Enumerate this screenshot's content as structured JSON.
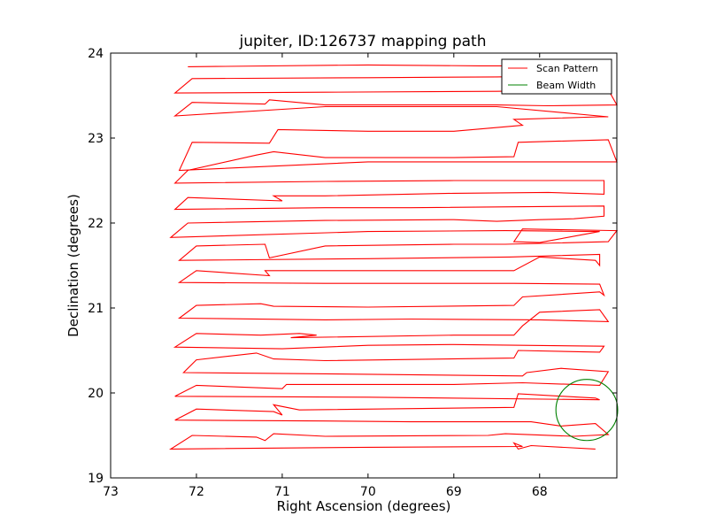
{
  "chart_data": {
    "type": "line",
    "title": "jupiter, ID:126737 mapping path",
    "xlabel": "Right Ascension (degrees)",
    "ylabel": "Declination (degrees)",
    "xlim": [
      73.0,
      67.1
    ],
    "ylim": [
      19.0,
      24.0
    ],
    "x_axis_inverted": true,
    "xticks": [
      73,
      72,
      71,
      70,
      69,
      68
    ],
    "yticks": [
      19,
      20,
      21,
      22,
      23,
      24
    ],
    "x_tick_labels": [
      "73",
      "72",
      "71",
      "70",
      "69",
      "68"
    ],
    "y_tick_labels": [
      "19",
      "20",
      "21",
      "22",
      "23",
      "24"
    ],
    "grid": false,
    "legend_position": "top-right",
    "series": [
      {
        "name": "Scan Pattern",
        "color": "#ff0000",
        "style": "line",
        "points": [
          [
            67.35,
            19.34
          ],
          [
            68.1,
            19.38
          ],
          [
            68.25,
            19.34
          ],
          [
            68.3,
            19.41
          ],
          [
            68.2,
            19.37
          ],
          [
            70.0,
            19.36
          ],
          [
            72.3,
            19.34
          ],
          [
            72.05,
            19.5
          ],
          [
            71.3,
            19.48
          ],
          [
            71.2,
            19.44
          ],
          [
            71.1,
            19.52
          ],
          [
            70.5,
            19.49
          ],
          [
            68.6,
            19.5
          ],
          [
            68.4,
            19.52
          ],
          [
            67.6,
            19.49
          ],
          [
            67.2,
            19.51
          ],
          [
            67.35,
            19.64
          ],
          [
            67.75,
            19.61
          ],
          [
            68.1,
            19.66
          ],
          [
            69.5,
            19.66
          ],
          [
            70.5,
            19.67
          ],
          [
            72.25,
            19.68
          ],
          [
            72.0,
            19.81
          ],
          [
            71.1,
            19.78
          ],
          [
            71.0,
            19.74
          ],
          [
            71.1,
            19.86
          ],
          [
            70.8,
            19.8
          ],
          [
            68.3,
            19.83
          ],
          [
            68.25,
            19.99
          ],
          [
            67.35,
            19.94
          ],
          [
            67.3,
            19.92
          ],
          [
            70.0,
            19.95
          ],
          [
            72.25,
            19.96
          ],
          [
            72.0,
            20.09
          ],
          [
            71.0,
            20.05
          ],
          [
            70.95,
            20.1
          ],
          [
            69.0,
            20.1
          ],
          [
            68.2,
            20.12
          ],
          [
            67.3,
            20.09
          ],
          [
            67.2,
            20.25
          ],
          [
            67.75,
            20.29
          ],
          [
            68.15,
            20.24
          ],
          [
            68.2,
            20.2
          ],
          [
            70.0,
            20.22
          ],
          [
            72.15,
            20.24
          ],
          [
            72.0,
            20.39
          ],
          [
            71.3,
            20.47
          ],
          [
            71.1,
            20.4
          ],
          [
            70.5,
            20.38
          ],
          [
            68.3,
            20.41
          ],
          [
            68.25,
            20.5
          ],
          [
            67.3,
            20.48
          ],
          [
            67.25,
            20.55
          ],
          [
            69.0,
            20.57
          ],
          [
            70.0,
            20.56
          ],
          [
            71.0,
            20.52
          ],
          [
            72.25,
            20.54
          ],
          [
            72.0,
            20.7
          ],
          [
            71.25,
            20.68
          ],
          [
            70.8,
            20.7
          ],
          [
            70.6,
            20.68
          ],
          [
            70.9,
            20.65
          ],
          [
            69.0,
            20.68
          ],
          [
            68.3,
            20.68
          ],
          [
            68.2,
            20.79
          ],
          [
            68.0,
            20.95
          ],
          [
            67.3,
            20.98
          ],
          [
            67.2,
            20.84
          ],
          [
            68.0,
            20.86
          ],
          [
            69.5,
            20.87
          ],
          [
            70.5,
            20.86
          ],
          [
            72.2,
            20.88
          ],
          [
            72.0,
            21.03
          ],
          [
            71.25,
            21.05
          ],
          [
            71.1,
            21.02
          ],
          [
            70.0,
            21.01
          ],
          [
            68.3,
            21.03
          ],
          [
            68.2,
            21.13
          ],
          [
            67.3,
            21.19
          ],
          [
            67.25,
            21.15
          ],
          [
            67.3,
            21.28
          ],
          [
            68.3,
            21.29
          ],
          [
            70.5,
            21.29
          ],
          [
            72.2,
            21.3
          ],
          [
            72.0,
            21.44
          ],
          [
            71.15,
            21.38
          ],
          [
            71.2,
            21.44
          ],
          [
            70.5,
            21.44
          ],
          [
            68.3,
            21.44
          ],
          [
            68.0,
            21.6
          ],
          [
            67.35,
            21.56
          ],
          [
            67.3,
            21.5
          ],
          [
            67.3,
            21.63
          ],
          [
            68.35,
            21.6
          ],
          [
            70.0,
            21.58
          ],
          [
            72.2,
            21.56
          ],
          [
            72.0,
            21.73
          ],
          [
            71.2,
            21.75
          ],
          [
            71.15,
            21.59
          ],
          [
            70.5,
            21.73
          ],
          [
            69.0,
            21.75
          ],
          [
            68.4,
            21.75
          ],
          [
            67.2,
            21.78
          ],
          [
            67.1,
            21.91
          ],
          [
            68.2,
            21.93
          ],
          [
            68.3,
            21.78
          ],
          [
            68.0,
            21.77
          ],
          [
            67.3,
            21.9
          ],
          [
            68.4,
            21.91
          ],
          [
            70.0,
            21.9
          ],
          [
            72.3,
            21.83
          ],
          [
            72.1,
            22.0
          ],
          [
            70.5,
            22.03
          ],
          [
            69.0,
            22.04
          ],
          [
            68.5,
            22.02
          ],
          [
            68.0,
            22.04
          ],
          [
            67.6,
            22.05
          ],
          [
            67.25,
            22.08
          ],
          [
            67.25,
            22.2
          ],
          [
            69.5,
            22.18
          ],
          [
            70.5,
            22.18
          ],
          [
            72.25,
            22.16
          ],
          [
            72.1,
            22.3
          ],
          [
            71.0,
            22.26
          ],
          [
            71.1,
            22.32
          ],
          [
            70.5,
            22.32
          ],
          [
            69.0,
            22.35
          ],
          [
            67.9,
            22.36
          ],
          [
            67.25,
            22.34
          ],
          [
            67.25,
            22.5
          ],
          [
            69.0,
            22.5
          ],
          [
            70.5,
            22.49
          ],
          [
            72.25,
            22.47
          ],
          [
            72.1,
            22.62
          ],
          [
            71.3,
            22.8
          ],
          [
            71.1,
            22.84
          ],
          [
            70.5,
            22.77
          ],
          [
            69.0,
            22.77
          ],
          [
            68.3,
            22.78
          ],
          [
            68.25,
            22.95
          ],
          [
            67.2,
            22.98
          ],
          [
            67.1,
            22.72
          ],
          [
            68.3,
            22.72
          ],
          [
            70.0,
            22.72
          ],
          [
            72.2,
            22.62
          ],
          [
            72.05,
            22.95
          ],
          [
            71.15,
            22.94
          ],
          [
            71.05,
            23.1
          ],
          [
            70.0,
            23.08
          ],
          [
            69.0,
            23.08
          ],
          [
            68.2,
            23.15
          ],
          [
            68.3,
            23.22
          ],
          [
            67.3,
            23.25
          ],
          [
            67.2,
            23.25
          ],
          [
            68.5,
            23.37
          ],
          [
            70.5,
            23.37
          ],
          [
            72.25,
            23.26
          ],
          [
            72.05,
            23.42
          ],
          [
            71.2,
            23.4
          ],
          [
            71.15,
            23.45
          ],
          [
            70.5,
            23.39
          ],
          [
            68.5,
            23.39
          ],
          [
            67.9,
            23.38
          ],
          [
            67.1,
            23.39
          ],
          [
            67.2,
            23.57
          ],
          [
            68.5,
            23.55
          ],
          [
            70.5,
            23.54
          ],
          [
            72.25,
            23.53
          ],
          [
            72.05,
            23.7
          ],
          [
            70.0,
            23.71
          ],
          [
            68.5,
            23.72
          ],
          [
            67.35,
            23.74
          ],
          [
            67.6,
            23.85
          ],
          [
            68.7,
            23.85
          ],
          [
            70.0,
            23.86
          ],
          [
            72.1,
            23.84
          ]
        ]
      },
      {
        "name": "Beam Width",
        "color": "#008000",
        "style": "circle",
        "center": [
          67.45,
          19.8
        ],
        "radius_ra": 0.36,
        "radius_dec": 0.36
      }
    ]
  }
}
